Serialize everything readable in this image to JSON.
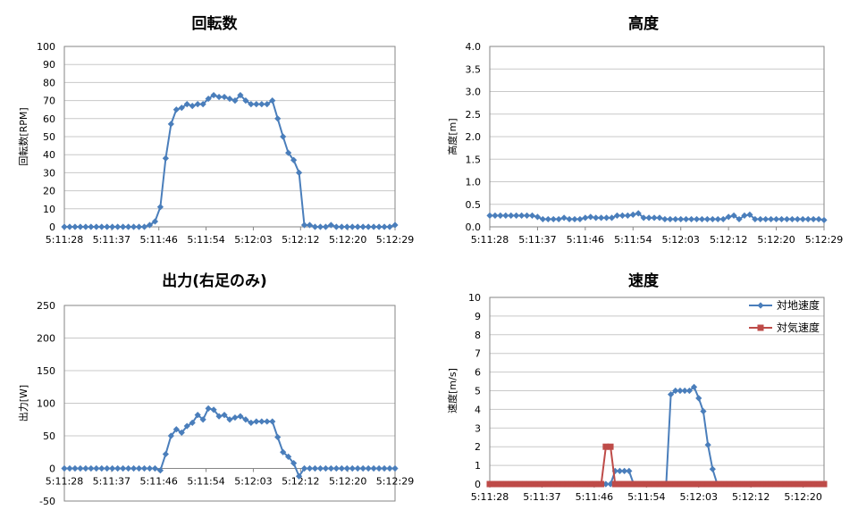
{
  "chart_data": [
    {
      "type": "line",
      "title": "回転数",
      "ylabel": "回転数[RPM]",
      "xlabel": "",
      "ylim": [
        0,
        100
      ],
      "ytick_step": 10,
      "y_tick_decimals": 0,
      "grid": true,
      "x_ticks": [
        "5:11:28",
        "5:11:37",
        "5:11:46",
        "5:11:54",
        "5:12:03",
        "5:12:12",
        "5:12:20",
        "5:12:29"
      ],
      "series": [
        {
          "name": "",
          "color": "#4a7ebb",
          "marker": "diamond",
          "values": [
            0,
            0,
            0,
            0,
            0,
            0,
            0,
            0,
            0,
            0,
            0,
            0,
            0,
            0,
            0,
            0,
            1,
            3,
            11,
            38,
            57,
            65,
            66,
            68,
            67,
            68,
            68,
            71,
            73,
            72,
            72,
            71,
            70,
            73,
            70,
            68,
            68,
            68,
            68,
            70,
            60,
            50,
            41,
            37,
            30,
            1,
            1,
            0,
            0,
            0,
            1,
            0,
            0,
            0,
            0,
            0,
            0,
            0,
            0,
            0,
            0,
            0,
            1
          ]
        }
      ]
    },
    {
      "type": "line",
      "title": "高度",
      "ylabel": "高度[m]",
      "xlabel": "",
      "ylim": [
        0,
        4
      ],
      "ytick_step": 0.5,
      "y_tick_decimals": 1,
      "grid": true,
      "x_ticks": [
        "5:11:28",
        "5:11:37",
        "5:11:46",
        "5:11:54",
        "5:12:03",
        "5:12:12",
        "5:12:20",
        "5:12:29"
      ],
      "series": [
        {
          "name": "",
          "color": "#4a7ebb",
          "marker": "diamond",
          "values": [
            0.25,
            0.25,
            0.25,
            0.25,
            0.25,
            0.25,
            0.25,
            0.25,
            0.25,
            0.22,
            0.17,
            0.17,
            0.17,
            0.17,
            0.2,
            0.17,
            0.17,
            0.17,
            0.2,
            0.22,
            0.2,
            0.2,
            0.2,
            0.2,
            0.25,
            0.25,
            0.25,
            0.27,
            0.3,
            0.2,
            0.2,
            0.2,
            0.2,
            0.17,
            0.17,
            0.17,
            0.17,
            0.17,
            0.17,
            0.17,
            0.17,
            0.17,
            0.17,
            0.17,
            0.17,
            0.22,
            0.25,
            0.17,
            0.25,
            0.27,
            0.17,
            0.17,
            0.17,
            0.17,
            0.17,
            0.17,
            0.17,
            0.17,
            0.17,
            0.17,
            0.17,
            0.17,
            0.17,
            0.15
          ]
        }
      ]
    },
    {
      "type": "line",
      "title": "出力(右足のみ)",
      "ylabel": "出力[W]",
      "xlabel": "",
      "ylim": [
        -50,
        250
      ],
      "ytick_step": 50,
      "y_tick_decimals": 0,
      "grid": true,
      "x_ticks": [
        "5:11:28",
        "5:11:37",
        "5:11:46",
        "5:11:54",
        "5:12:03",
        "5:12:12",
        "5:12:20",
        "5:12:29"
      ],
      "series": [
        {
          "name": "",
          "color": "#4a7ebb",
          "marker": "diamond",
          "values": [
            0,
            0,
            0,
            0,
            0,
            0,
            0,
            0,
            0,
            0,
            0,
            0,
            0,
            0,
            0,
            0,
            0,
            0,
            -3,
            22,
            50,
            60,
            55,
            65,
            70,
            82,
            75,
            92,
            90,
            80,
            82,
            75,
            78,
            80,
            75,
            70,
            72,
            72,
            72,
            72,
            48,
            25,
            18,
            8,
            -12,
            0,
            0,
            0,
            0,
            0,
            0,
            0,
            0,
            0,
            0,
            0,
            0,
            0,
            0,
            0,
            0,
            0,
            0
          ]
        }
      ]
    },
    {
      "type": "line",
      "title": "速度",
      "ylabel": "速度[m/s]",
      "xlabel": "",
      "ylim": [
        0,
        10
      ],
      "ytick_step": 1,
      "y_tick_decimals": 0,
      "grid": true,
      "legend": "top-right",
      "x_ticks": [
        "5:11:28",
        "5:11:37",
        "5:11:46",
        "5:11:54",
        "5:12:03",
        "5:12:12",
        "5:12:20"
      ],
      "series": [
        {
          "name": "対地速度",
          "color": "#4a7ebb",
          "marker": "diamond",
          "values": [
            0,
            0,
            0,
            0,
            0,
            0,
            0,
            0,
            0,
            0,
            0,
            0,
            0,
            0,
            0,
            0,
            0,
            0,
            0,
            0,
            0,
            0,
            0,
            0,
            0,
            0,
            0,
            0.7,
            0.7,
            0.7,
            0.7,
            0,
            0,
            0,
            0,
            0,
            0,
            0,
            0,
            4.8,
            5,
            5,
            5,
            5,
            5.2,
            4.6,
            3.9,
            2.1,
            0.8,
            0,
            0,
            0,
            0,
            0,
            0,
            0,
            0,
            0,
            0,
            0,
            0,
            0,
            0,
            0,
            0,
            0,
            0,
            0,
            0,
            0,
            0,
            0,
            0
          ]
        },
        {
          "name": "対気速度",
          "color": "#be4b48",
          "marker": "square",
          "values": [
            0,
            0,
            0,
            0,
            0,
            0,
            0,
            0,
            0,
            0,
            0,
            0,
            0,
            0,
            0,
            0,
            0,
            0,
            0,
            0,
            0,
            0,
            0,
            0,
            0,
            2,
            2,
            0,
            0,
            0,
            0,
            0,
            0,
            0,
            0,
            0,
            0,
            0,
            0,
            0,
            0,
            0,
            0,
            0,
            0,
            0,
            0,
            0,
            0,
            0,
            0,
            0,
            0,
            0,
            0,
            0,
            0,
            0,
            0,
            0,
            0,
            0,
            0,
            0,
            0,
            0,
            0,
            0,
            0,
            0,
            0,
            0,
            0
          ]
        }
      ]
    }
  ]
}
